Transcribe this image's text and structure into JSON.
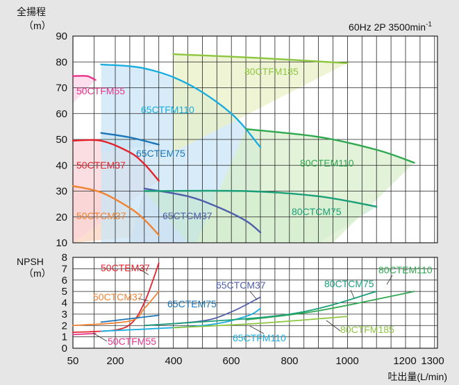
{
  "chart_data": [
    {
      "type": "line",
      "title": "60Hz 2P 3500min-1",
      "title_parts": {
        "main": "60Hz 2P 3500min",
        "sup": "-1"
      },
      "ylabel": "全揚程",
      "yunit": "（m）",
      "xlabel": "吐出量(L/min)",
      "x_ticks": [
        50,
        200,
        400,
        600,
        800,
        1000,
        1200,
        1300
      ],
      "y_ticks": [
        10,
        20,
        30,
        40,
        50,
        60,
        70,
        80,
        90
      ],
      "ylim": [
        10,
        90
      ],
      "grid": true,
      "series": [
        {
          "name": "50CTFM55",
          "color": "#e8338a",
          "x": [
            50,
            100,
            130
          ],
          "y": [
            74.5,
            74.5,
            73
          ]
        },
        {
          "name": "65CTFM110",
          "color": "#1aade0",
          "x": [
            150,
            300,
            450,
            600,
            700
          ],
          "y": [
            79,
            77.5,
            71.5,
            60,
            47
          ]
        },
        {
          "name": "65CTEM75",
          "color": "#1a74b8",
          "x": [
            150,
            250,
            350
          ],
          "y": [
            52.5,
            50.8,
            48
          ]
        },
        {
          "name": "50CTEM37",
          "color": "#e4232d",
          "x": [
            50,
            150,
            250,
            300,
            350
          ],
          "y": [
            49.5,
            49.5,
            45,
            40.5,
            34
          ]
        },
        {
          "name": "50CTCM37",
          "color": "#f08232",
          "x": [
            50,
            150,
            250,
            300,
            350
          ],
          "y": [
            32,
            29.5,
            23.5,
            19,
            13
          ]
        },
        {
          "name": "65CTCM37",
          "color": "#5060a8",
          "x": [
            300,
            450,
            550,
            650,
            700
          ],
          "y": [
            31,
            28,
            24,
            18.5,
            14
          ]
        },
        {
          "name": "80CTFM185",
          "color": "#8cc63f",
          "x": [
            400,
            700,
            1000
          ],
          "y": [
            83,
            81.5,
            79.5
          ]
        },
        {
          "name": "80CTEM110",
          "color": "#2fa84f",
          "x": [
            650,
            900,
            1100,
            1230
          ],
          "y": [
            54,
            51,
            46,
            41
          ]
        },
        {
          "name": "80CTCM75",
          "color": "#1a9f78",
          "x": [
            300,
            650,
            900,
            1100
          ],
          "y": [
            30,
            30,
            28,
            24
          ]
        }
      ]
    },
    {
      "type": "line",
      "ylabel": "NPSH",
      "yunit": "（m）",
      "xlabel": "吐出量(L/min)",
      "x_ticks": [
        50,
        200,
        400,
        600,
        800,
        1000,
        1200,
        1300
      ],
      "y_ticks": [
        0,
        1,
        2,
        3,
        4,
        5,
        6,
        7,
        8
      ],
      "ylim": [
        0,
        8
      ],
      "grid": true,
      "series": [
        {
          "name": "50CTEM37",
          "color": "#e4232d",
          "x": [
            50,
            200,
            260,
            300,
            330,
            350
          ],
          "y": [
            1.4,
            1.6,
            2.3,
            4.0,
            6.0,
            7.5
          ]
        },
        {
          "name": "50CTCM37",
          "color": "#f08232",
          "x": [
            50,
            250,
            300,
            350
          ],
          "y": [
            2.0,
            2.4,
            3.5,
            5.0
          ]
        },
        {
          "name": "50CTFM55",
          "color": "#e8338a",
          "x": [
            50,
            130
          ],
          "y": [
            1.2,
            1.3
          ]
        },
        {
          "name": "65CTEM75",
          "color": "#1a74b8",
          "x": [
            150,
            350
          ],
          "y": [
            2.3,
            2.9
          ]
        },
        {
          "name": "65CTCM37",
          "color": "#5060a8",
          "x": [
            300,
            500,
            600,
            700
          ],
          "y": [
            2.0,
            2.4,
            3.2,
            4.5
          ]
        },
        {
          "name": "65CTFM110",
          "color": "#1aade0",
          "x": [
            150,
            500,
            650,
            700
          ],
          "y": [
            1.5,
            2.0,
            2.8,
            3.5
          ]
        },
        {
          "name": "80CTFM185",
          "color": "#8cc63f",
          "x": [
            400,
            700,
            1000
          ],
          "y": [
            1.8,
            2.2,
            2.8
          ]
        },
        {
          "name": "80CTEM110",
          "color": "#2fa84f",
          "x": [
            650,
            900,
            1230
          ],
          "y": [
            2.5,
            3.3,
            5.0
          ]
        },
        {
          "name": "80CTCM75",
          "color": "#1a9f78",
          "x": [
            300,
            800,
            1100
          ],
          "y": [
            2.0,
            3.0,
            5.0
          ]
        }
      ]
    }
  ],
  "colors": {
    "grid": "#222222",
    "plot_bg": "#ffffff",
    "page_bg": "#e6e6e6"
  },
  "regions": [
    {
      "series": "50CTCM37",
      "color": "#fbd3bf"
    },
    {
      "series": "50CTEM37",
      "color": "#f9d3d8"
    },
    {
      "series": "50CTFM55",
      "color": "#fbd3e6"
    },
    {
      "series": "65CTCM37",
      "color": "#cfd6ee"
    },
    {
      "series": "65CTEM75",
      "color": "#c9e2f3"
    },
    {
      "series": "65CTFM110",
      "color": "#c9e6f6"
    },
    {
      "series": "80CTCM75",
      "color": "#c9ead5"
    },
    {
      "series": "80CTEM110",
      "color": "#d9efcc"
    },
    {
      "series": "80CTFM185",
      "color": "#eaf2c6"
    }
  ]
}
